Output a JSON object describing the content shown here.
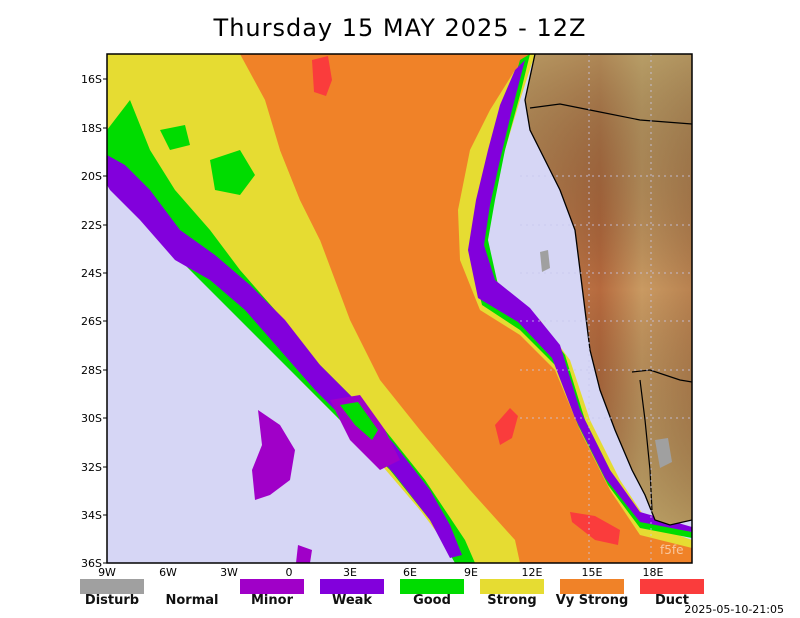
{
  "title": "Thursday 15 MAY 2025 - 12Z",
  "lat_labels": [
    "16S",
    "18S",
    "20S",
    "22S",
    "24S",
    "26S",
    "28S",
    "30S",
    "32S",
    "34S",
    "36S"
  ],
  "lon_labels": [
    "9W",
    "6W",
    "3W",
    "0",
    "3E",
    "6E",
    "9E",
    "12E",
    "15E",
    "18E"
  ],
  "legend": [
    {
      "label": "Disturb",
      "color": "#a0a0a0"
    },
    {
      "label": "Normal",
      "color": "#ffffff"
    },
    {
      "label": "Minor",
      "color": "#a000c8"
    },
    {
      "label": "Weak",
      "color": "#8200dc"
    },
    {
      "label": "Good",
      "color": "#00dc00"
    },
    {
      "label": "Strong",
      "color": "#e6dc32"
    },
    {
      "label": "Vy Strong",
      "color": "#f08228"
    },
    {
      "label": "Duct",
      "color": "#fa3c3c"
    }
  ],
  "colors": {
    "background_sea": "#d6d6f5",
    "land_low": "#c08050",
    "land_high": "#7ea060"
  },
  "timestamp": "2025-05-10-21:05",
  "watermark": "f5fe"
}
